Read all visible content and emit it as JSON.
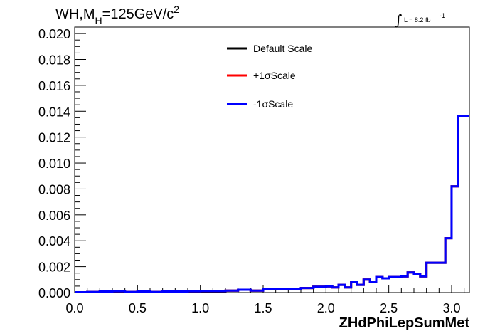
{
  "chart_data": {
    "type": "histogram",
    "title": "WH,M",
    "title_sub": "H",
    "title_rest": "=125GeV/c",
    "title_sup": "2",
    "lumi": {
      "prefix": "∫",
      "text": "L = 8.2 fb",
      "sup": "-1"
    },
    "xlabel": "ZHdPhiLepSumMet",
    "xlim": [
      0.0,
      3.1416
    ],
    "ylim": [
      0.0,
      0.0205
    ],
    "x_ticks": [
      "0.0",
      "0.5",
      "1.0",
      "1.5",
      "2.0",
      "2.5",
      "3.0"
    ],
    "y_ticks": [
      "0.000",
      "0.002",
      "0.004",
      "0.006",
      "0.008",
      "0.010",
      "0.012",
      "0.014",
      "0.016",
      "0.018",
      "0.020"
    ],
    "bin_edges": [
      0.0,
      0.1,
      0.2,
      0.3,
      0.4,
      0.5,
      0.6,
      0.7,
      0.8,
      0.9,
      1.0,
      1.1,
      1.2,
      1.3,
      1.4,
      1.5,
      1.6,
      1.7,
      1.8,
      1.9,
      2.0,
      2.05,
      2.1,
      2.15,
      2.2,
      2.25,
      2.3,
      2.35,
      2.4,
      2.45,
      2.5,
      2.55,
      2.6,
      2.65,
      2.7,
      2.75,
      2.8,
      2.85,
      2.9,
      2.95,
      3.0,
      3.05,
      3.1416
    ],
    "series": [
      {
        "name": "Default Scale",
        "color": "#000000",
        "values": [
          3e-05,
          5e-05,
          8e-05,
          0.0001,
          5e-05,
          8e-05,
          5e-05,
          8e-05,
          8e-05,
          0.0001,
          0.00012,
          0.00012,
          0.00015,
          0.00022,
          0.00015,
          0.00025,
          0.00025,
          0.0003,
          0.00035,
          0.00045,
          0.00048,
          0.0004,
          0.0006,
          0.0004,
          0.0008,
          0.0006,
          0.001,
          0.0008,
          0.0012,
          0.0011,
          0.0012,
          0.0012,
          0.00125,
          0.00155,
          0.0014,
          0.00125,
          0.0023,
          0.0023,
          0.0023,
          0.0042,
          0.0082,
          0.01365
        ]
      },
      {
        "name": "+1σScale",
        "color": "#ff0000",
        "values": [
          3e-05,
          5e-05,
          8e-05,
          0.0001,
          5e-05,
          8e-05,
          5e-05,
          8e-05,
          8e-05,
          0.0001,
          0.00012,
          0.00012,
          0.00015,
          0.00022,
          0.00015,
          0.00025,
          0.00025,
          0.0003,
          0.00035,
          0.00045,
          0.00048,
          0.0004,
          0.0006,
          0.0004,
          0.0008,
          0.0006,
          0.001,
          0.0008,
          0.0012,
          0.0011,
          0.0012,
          0.0012,
          0.00125,
          0.00155,
          0.0014,
          0.00125,
          0.0023,
          0.0023,
          0.0023,
          0.0042,
          0.0082,
          0.01365
        ]
      },
      {
        "name": "-1σScale",
        "color": "#0000ff",
        "values": [
          3e-05,
          5e-05,
          8e-05,
          0.0001,
          5e-05,
          8e-05,
          5e-05,
          8e-05,
          8e-05,
          0.0001,
          0.00012,
          0.00012,
          0.00015,
          0.00022,
          0.00015,
          0.00025,
          0.00025,
          0.0003,
          0.00035,
          0.00045,
          0.00048,
          0.0004,
          0.0006,
          0.0004,
          0.0008,
          0.0006,
          0.001,
          0.0008,
          0.0012,
          0.0011,
          0.0012,
          0.0012,
          0.00125,
          0.00155,
          0.0014,
          0.00125,
          0.0023,
          0.0023,
          0.0023,
          0.0042,
          0.0082,
          0.01365
        ]
      }
    ],
    "legend": {
      "placement": "top-center"
    },
    "grid": false
  }
}
